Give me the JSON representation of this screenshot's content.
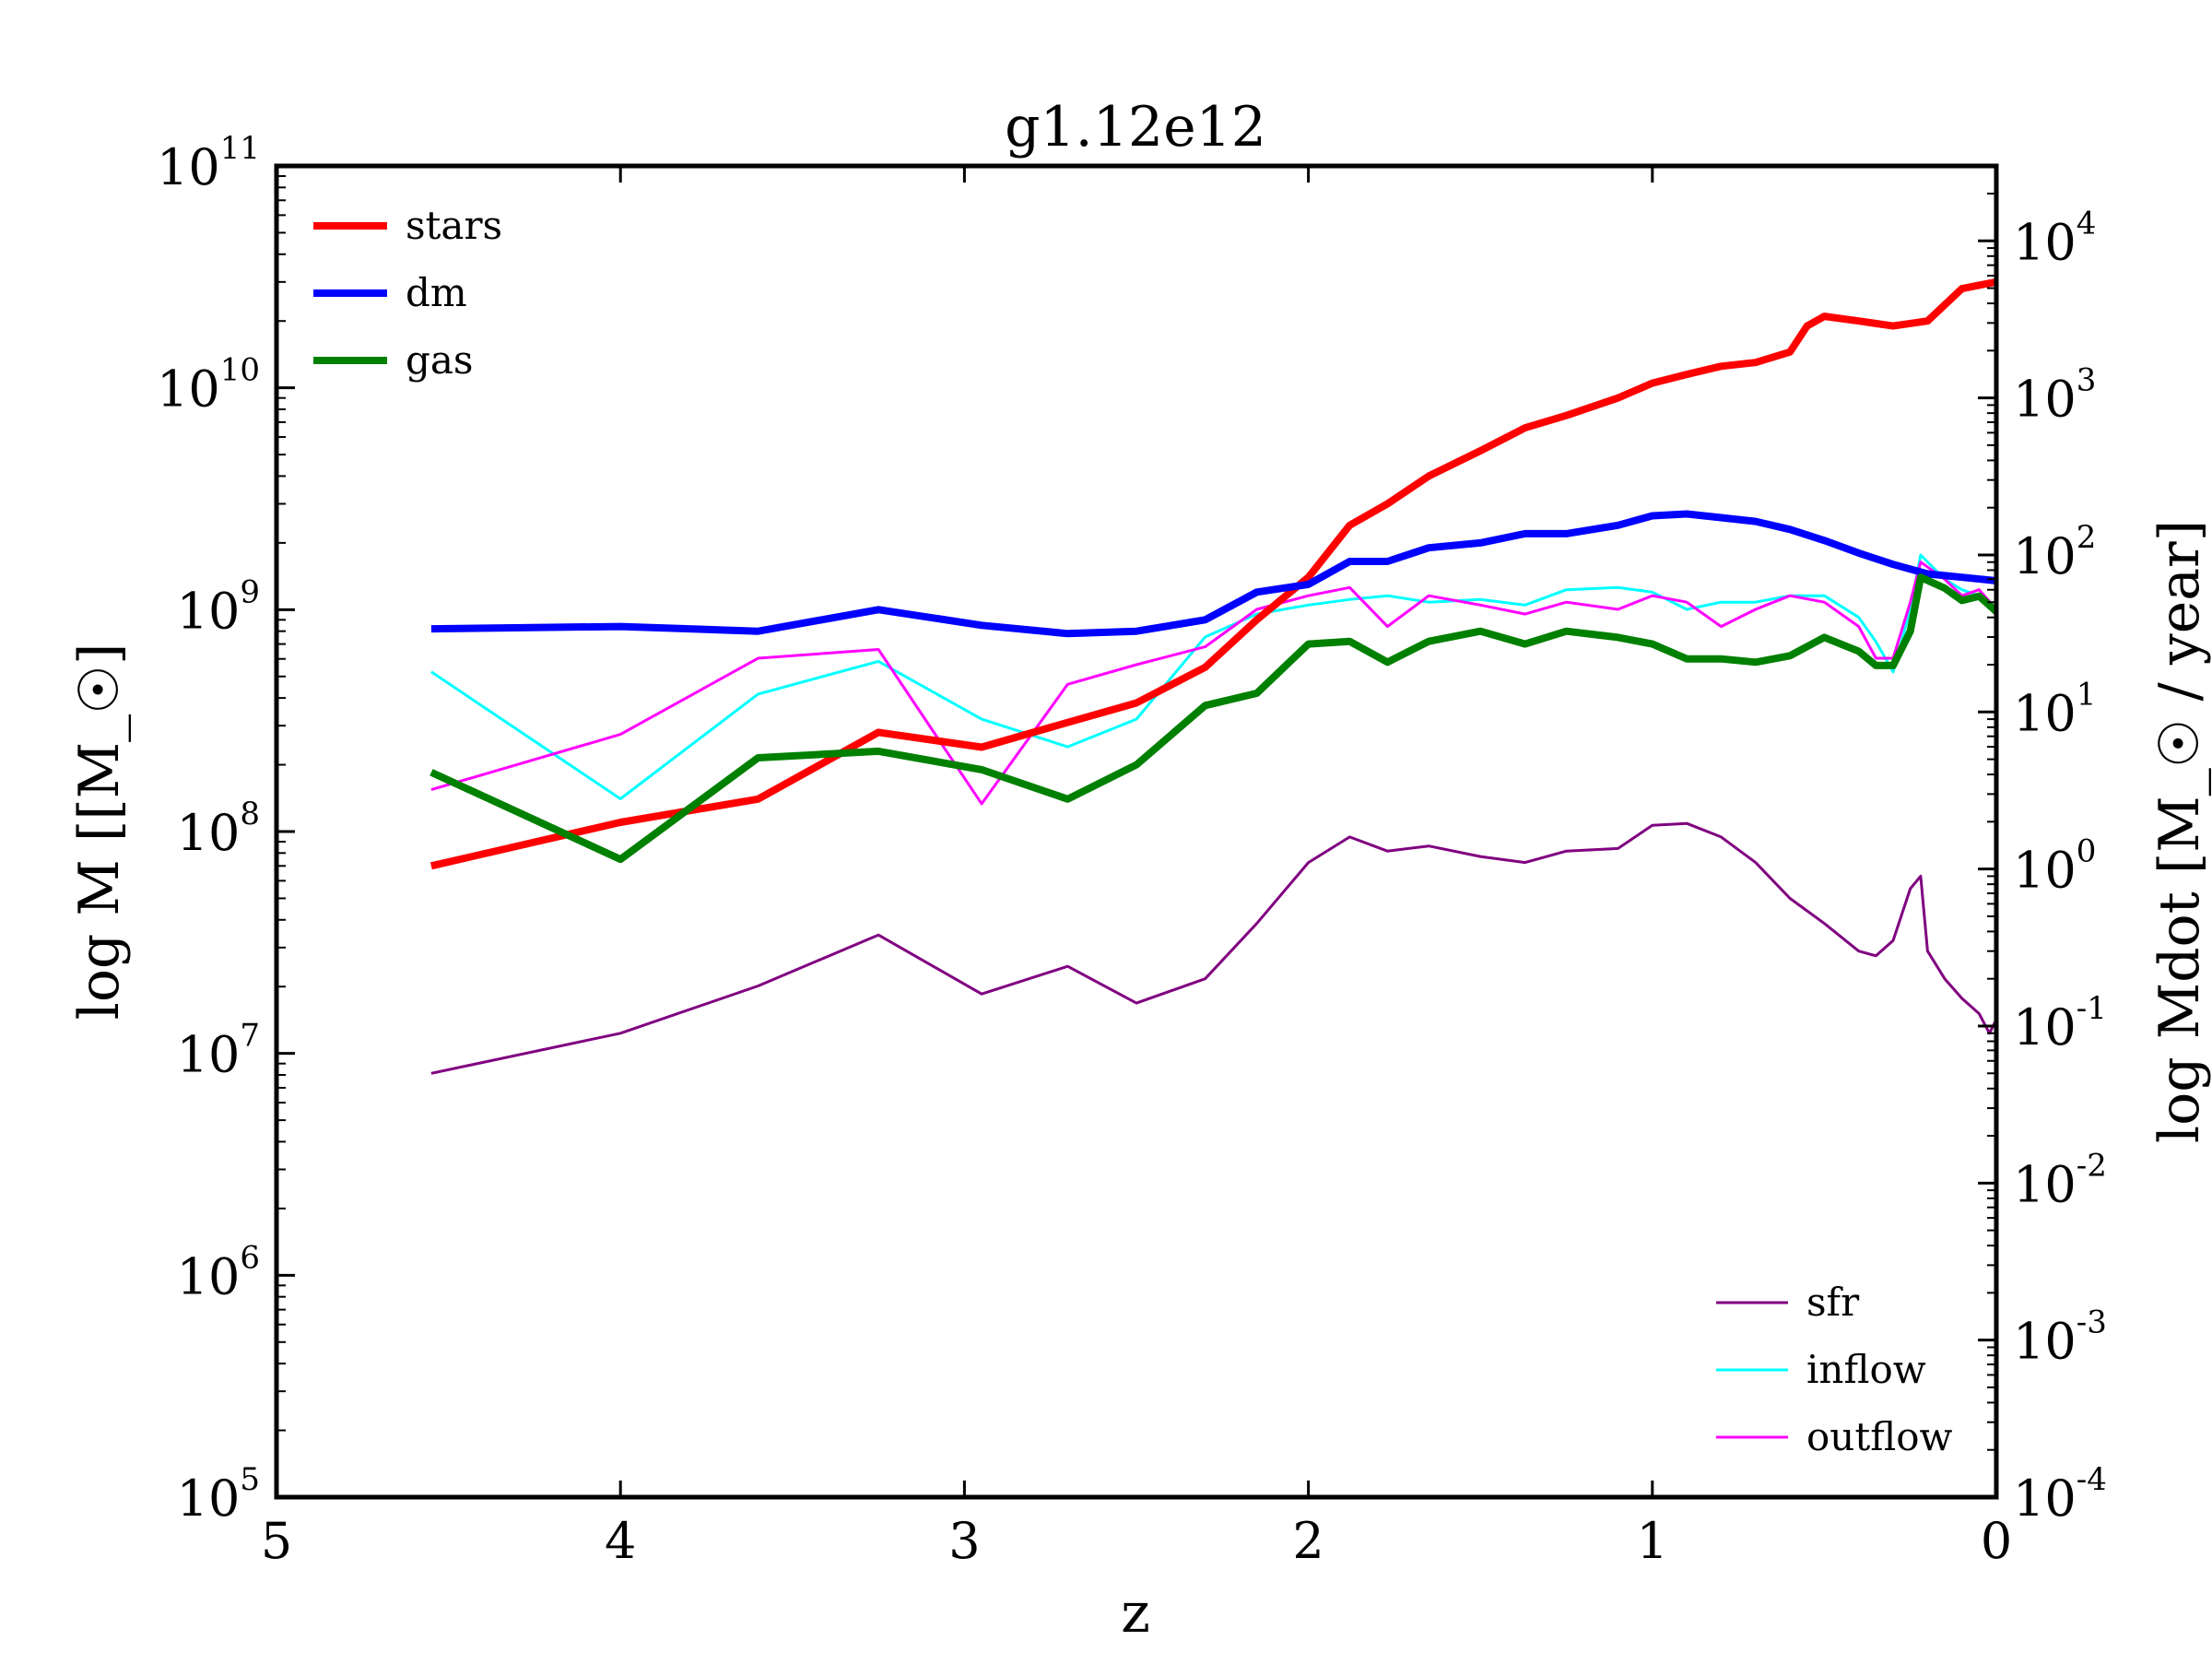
{
  "chart_data": {
    "type": "line",
    "title": "g1.12e12",
    "xlabel": "z",
    "ylabel_left": "log M [[M_☉]",
    "ylabel_right": "log Mdot [M_☉ / year]",
    "x_ticks": [
      "5",
      "4",
      "3",
      "2",
      "1",
      "0"
    ],
    "xlim": [
      5,
      0
    ],
    "ylim_left": [
      100000,
      100000000000
    ],
    "ylim_right": [
      0.0001,
      30000
    ],
    "y_scale": "log",
    "y_ticks_left": [
      {
        "base": "10",
        "exp": "5"
      },
      {
        "base": "10",
        "exp": "6"
      },
      {
        "base": "10",
        "exp": "7"
      },
      {
        "base": "10",
        "exp": "8"
      },
      {
        "base": "10",
        "exp": "9"
      },
      {
        "base": "10",
        "exp": "10"
      },
      {
        "base": "10",
        "exp": "11"
      }
    ],
    "y_ticks_right": [
      {
        "base": "10",
        "exp": "-4"
      },
      {
        "base": "10",
        "exp": "-3"
      },
      {
        "base": "10",
        "exp": "-2"
      },
      {
        "base": "10",
        "exp": "-1"
      },
      {
        "base": "10",
        "exp": "0"
      },
      {
        "base": "10",
        "exp": "1"
      },
      {
        "base": "10",
        "exp": "2"
      },
      {
        "base": "10",
        "exp": "3"
      },
      {
        "base": "10",
        "exp": "4"
      }
    ],
    "legend_left_placement": "top-left",
    "legend_right_placement": "bottom-right",
    "grid": false,
    "series_left": [
      {
        "name": "stars",
        "color": "#ff0000",
        "width": 8,
        "x": [
          4.55,
          4.0,
          3.6,
          3.25,
          2.95,
          2.7,
          2.5,
          2.3,
          2.15,
          2.0,
          1.88,
          1.77,
          1.65,
          1.5,
          1.37,
          1.25,
          1.1,
          1.0,
          0.9,
          0.8,
          0.7,
          0.6,
          0.55,
          0.5,
          0.4,
          0.3,
          0.2,
          0.1,
          0.0
        ],
        "y": [
          70000000.0,
          110000000.0,
          140000000.0,
          280000000.0,
          240000000.0,
          310000000.0,
          380000000.0,
          550000000.0,
          900000000.0,
          1400000000.0,
          2400000000.0,
          3000000000.0,
          4000000000.0,
          5200000000.0,
          6600000000.0,
          7500000000.0,
          9000000000.0,
          10500000000.0,
          11500000000.0,
          12500000000.0,
          13000000000.0,
          14500000000.0,
          19000000000.0,
          21000000000.0,
          20000000000.0,
          19000000000.0,
          20000000000.0,
          28000000000.0,
          30000000000.0
        ]
      },
      {
        "name": "dm",
        "color": "#0000ff",
        "width": 8,
        "x": [
          4.55,
          4.0,
          3.6,
          3.25,
          2.95,
          2.7,
          2.5,
          2.3,
          2.15,
          2.0,
          1.88,
          1.77,
          1.65,
          1.5,
          1.37,
          1.25,
          1.1,
          1.0,
          0.9,
          0.8,
          0.7,
          0.6,
          0.5,
          0.4,
          0.3,
          0.2,
          0.1,
          0.0
        ],
        "y": [
          820000000.0,
          840000000.0,
          800000000.0,
          1000000000.0,
          850000000.0,
          780000000.0,
          800000000.0,
          900000000.0,
          1200000000.0,
          1300000000.0,
          1650000000.0,
          1650000000.0,
          1900000000.0,
          2000000000.0,
          2200000000.0,
          2200000000.0,
          2400000000.0,
          2650000000.0,
          2700000000.0,
          2600000000.0,
          2500000000.0,
          2300000000.0,
          2050000000.0,
          1800000000.0,
          1600000000.0,
          1450000000.0,
          1400000000.0,
          1350000000.0
        ]
      },
      {
        "name": "gas",
        "color": "#008000",
        "width": 8,
        "x": [
          4.55,
          4.0,
          3.6,
          3.25,
          2.95,
          2.7,
          2.5,
          2.3,
          2.15,
          2.0,
          1.88,
          1.77,
          1.65,
          1.5,
          1.37,
          1.25,
          1.1,
          1.0,
          0.9,
          0.8,
          0.7,
          0.6,
          0.5,
          0.4,
          0.35,
          0.3,
          0.25,
          0.22,
          0.15,
          0.1,
          0.05,
          0.0
        ],
        "y": [
          185000000.0,
          75000000.0,
          215000000.0,
          230000000.0,
          190000000.0,
          140000000.0,
          200000000.0,
          370000000.0,
          420000000.0,
          700000000.0,
          720000000.0,
          580000000.0,
          720000000.0,
          800000000.0,
          700000000.0,
          800000000.0,
          750000000.0,
          700000000.0,
          600000000.0,
          600000000.0,
          580000000.0,
          620000000.0,
          750000000.0,
          650000000.0,
          560000000.0,
          560000000.0,
          800000000.0,
          1400000000.0,
          1250000000.0,
          1100000000.0,
          1150000000.0,
          980000000.0
        ]
      }
    ],
    "series_right": [
      {
        "name": "sfr",
        "color": "#800080",
        "width": 3,
        "x": [
          4.55,
          4.0,
          3.6,
          3.25,
          2.95,
          2.7,
          2.5,
          2.3,
          2.15,
          2.0,
          1.88,
          1.77,
          1.65,
          1.5,
          1.37,
          1.25,
          1.1,
          1.0,
          0.9,
          0.8,
          0.7,
          0.6,
          0.5,
          0.4,
          0.35,
          0.3,
          0.25,
          0.22,
          0.2,
          0.15,
          0.1,
          0.05,
          0.02,
          0.0
        ],
        "y": [
          0.05,
          0.09,
          0.18,
          0.38,
          0.16,
          0.24,
          0.14,
          0.2,
          0.45,
          1.1,
          1.6,
          1.3,
          1.4,
          1.2,
          1.1,
          1.3,
          1.35,
          1.9,
          1.95,
          1.6,
          1.1,
          0.65,
          0.45,
          0.3,
          0.28,
          0.35,
          0.75,
          0.9,
          0.3,
          0.2,
          0.15,
          0.12,
          0.09,
          0.11
        ]
      },
      {
        "name": "inflow",
        "color": "#00ffff",
        "width": 3,
        "x": [
          4.55,
          4.0,
          3.6,
          3.25,
          2.95,
          2.7,
          2.5,
          2.3,
          2.15,
          2.0,
          1.88,
          1.77,
          1.65,
          1.5,
          1.37,
          1.25,
          1.1,
          1.0,
          0.9,
          0.8,
          0.7,
          0.6,
          0.5,
          0.4,
          0.35,
          0.3,
          0.25,
          0.22,
          0.15,
          0.1,
          0.05,
          0.0
        ],
        "y": [
          18,
          2.8,
          13,
          21,
          9,
          6,
          9,
          30,
          42,
          48,
          52,
          55,
          50,
          52,
          48,
          60,
          62,
          58,
          45,
          50,
          50,
          55,
          55,
          40,
          28,
          18,
          45,
          100,
          70,
          60,
          55,
          42
        ]
      },
      {
        "name": "outflow",
        "color": "#ff00ff",
        "width": 3,
        "x": [
          4.55,
          4.0,
          3.6,
          3.25,
          2.95,
          2.7,
          2.5,
          2.3,
          2.15,
          2.0,
          1.88,
          1.77,
          1.65,
          1.5,
          1.37,
          1.25,
          1.1,
          1.0,
          0.9,
          0.8,
          0.7,
          0.6,
          0.5,
          0.4,
          0.35,
          0.3,
          0.25,
          0.22,
          0.15,
          0.1,
          0.05,
          0.0
        ],
        "y": [
          3.2,
          7.2,
          22,
          25,
          2.6,
          15,
          20,
          26,
          45,
          55,
          62,
          35,
          55,
          48,
          42,
          50,
          45,
          55,
          50,
          35,
          45,
          55,
          50,
          35,
          22,
          22,
          50,
          90,
          70,
          55,
          60,
          45
        ]
      }
    ]
  }
}
